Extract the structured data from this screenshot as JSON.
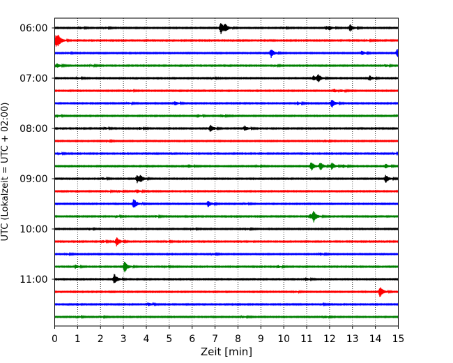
{
  "chart_data": {
    "type": "line",
    "xlabel": "Zeit  [min]",
    "ylabel": "UTC (Lokalzeit = UTC + 02:00)",
    "xlim": [
      0,
      15
    ],
    "x_ticks": [
      "0",
      "1",
      "2",
      "3",
      "4",
      "5",
      "6",
      "7",
      "8",
      "9",
      "10",
      "11",
      "12",
      "13",
      "14",
      "15"
    ],
    "y_tick_labels": [
      "06:00",
      "07:00",
      "08:00",
      "09:00",
      "10:00",
      "11:00"
    ],
    "y_tick_rows": [
      0,
      4,
      8,
      12,
      16,
      20
    ],
    "grid": "vertical dotted",
    "row_colors": [
      "#000000",
      "#ff0000",
      "#0000ff",
      "#008000"
    ],
    "rows": [
      {
        "events": [
          [
            1.1,
            0.4
          ],
          [
            2.2,
            0.35
          ],
          [
            7.25,
            2.2
          ],
          [
            7.45,
            1.0
          ],
          [
            9.95,
            0.35
          ],
          [
            11.85,
            0.6
          ],
          [
            12.0,
            0.6
          ],
          [
            12.9,
            1.3
          ]
        ]
      },
      {
        "events": [
          [
            0.05,
            2.3
          ],
          [
            0.15,
            1.2
          ],
          [
            13.6,
            0.3
          ]
        ]
      },
      {
        "events": [
          [
            0.55,
            0.3
          ],
          [
            9.45,
            1.6
          ],
          [
            13.4,
            0.7
          ],
          [
            14.95,
            1.4
          ]
        ]
      },
      {
        "events": [
          [
            0.1,
            0.7
          ],
          [
            1.6,
            0.3
          ],
          [
            9.6,
            0.3
          ],
          [
            14.45,
            0.4
          ]
        ]
      },
      {
        "events": [
          [
            1.0,
            0.3
          ],
          [
            6.9,
            0.3
          ],
          [
            11.5,
            1.3
          ],
          [
            11.3,
            0.9
          ],
          [
            13.75,
            0.9
          ]
        ]
      },
      {
        "events": [
          [
            3.3,
            0.3
          ],
          [
            12.2,
            0.6
          ],
          [
            12.5,
            0.4
          ]
        ]
      },
      {
        "events": [
          [
            3.2,
            0.35
          ],
          [
            5.25,
            0.7
          ],
          [
            10.6,
            0.5
          ],
          [
            12.1,
            1.5
          ]
        ]
      },
      {
        "events": [
          [
            0.1,
            0.5
          ],
          [
            6.25,
            0.5
          ],
          [
            7.3,
            0.4
          ],
          [
            14.9,
            0.4
          ]
        ]
      },
      {
        "events": [
          [
            2.2,
            0.4
          ],
          [
            3.7,
            0.4
          ],
          [
            6.8,
            1.3
          ],
          [
            8.3,
            0.9
          ]
        ]
      },
      {
        "events": [
          [
            2.3,
            0.3
          ],
          [
            11.8,
            0.4
          ]
        ]
      },
      {
        "events": [
          [
            0.2,
            0.3
          ],
          [
            14.8,
            0.3
          ]
        ]
      },
      {
        "events": [
          [
            5.85,
            0.6
          ],
          [
            8.85,
            0.3
          ],
          [
            11.2,
            1.6
          ],
          [
            11.6,
            1.4
          ],
          [
            12.1,
            1.2
          ],
          [
            12.6,
            0.6
          ],
          [
            14.45,
            0.7
          ]
        ]
      },
      {
        "events": [
          [
            2.1,
            0.4
          ],
          [
            3.6,
            1.5
          ],
          [
            3.75,
            0.9
          ],
          [
            14.45,
            1.5
          ]
        ]
      },
      {
        "events": [
          [
            2.3,
            0.3
          ],
          [
            2.8,
            0.35
          ],
          [
            3.6,
            0.6
          ]
        ]
      },
      {
        "events": [
          [
            3.45,
            1.9
          ],
          [
            6.7,
            1.1
          ],
          [
            8.3,
            0.35
          ]
        ]
      },
      {
        "events": [
          [
            2.7,
            0.35
          ],
          [
            4.4,
            0.35
          ],
          [
            11.3,
            1.9
          ],
          [
            11.15,
            0.9
          ]
        ]
      },
      {
        "events": [
          [
            1.5,
            0.4
          ],
          [
            6.0,
            0.35
          ],
          [
            8.4,
            0.3
          ]
        ]
      },
      {
        "events": [
          [
            2.1,
            0.4
          ],
          [
            2.7,
            1.6
          ],
          [
            4.85,
            0.35
          ]
        ]
      },
      {
        "events": [
          [
            0.5,
            0.35
          ],
          [
            6.9,
            0.3
          ],
          [
            11.6,
            0.45
          ]
        ]
      },
      {
        "events": [
          [
            0.9,
            0.6
          ],
          [
            3.05,
            2.0
          ],
          [
            4.85,
            0.3
          ],
          [
            9.75,
            0.4
          ]
        ]
      },
      {
        "events": [
          [
            2.6,
            1.9
          ],
          [
            10.95,
            0.6
          ]
        ]
      },
      {
        "events": [
          [
            14.2,
            1.9
          ],
          [
            10.5,
            0.3
          ]
        ]
      },
      {
        "events": [
          [
            4.1,
            0.6
          ],
          [
            11.6,
            0.35
          ]
        ]
      },
      {
        "events": [
          [
            1.0,
            0.4
          ],
          [
            2.0,
            0.3
          ],
          [
            8.2,
            0.35
          ],
          [
            11.8,
            0.4
          ]
        ]
      }
    ]
  }
}
